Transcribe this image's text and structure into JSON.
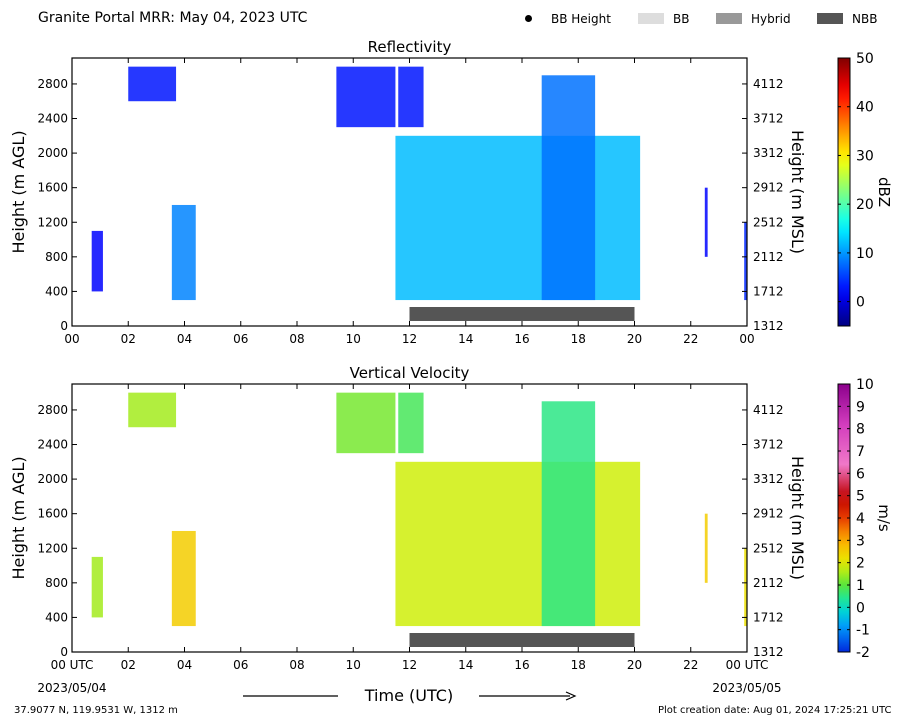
{
  "header": {
    "title": "Granite Portal MRR:  May 04, 2023 UTC"
  },
  "legend": {
    "items": [
      {
        "label": "BB Height",
        "color": "#000000",
        "marker": "dot"
      },
      {
        "label": "BB",
        "color": "#dddddd",
        "marker": "box"
      },
      {
        "label": "Hybrid",
        "color": "#999999",
        "marker": "box"
      },
      {
        "label": "NBB",
        "color": "#555555",
        "marker": "box"
      }
    ]
  },
  "xaxis": {
    "label": "Time (UTC)",
    "ticks": [
      "00",
      "02",
      "04",
      "06",
      "08",
      "10",
      "12",
      "14",
      "16",
      "18",
      "20",
      "22",
      "00"
    ],
    "tick_values": [
      0,
      2,
      4,
      6,
      8,
      10,
      12,
      14,
      16,
      18,
      20,
      22,
      24
    ],
    "bottom_ticks": [
      "00 UTC",
      "02",
      "04",
      "06",
      "08",
      "10",
      "12",
      "14",
      "16",
      "18",
      "20",
      "22",
      "00 UTC"
    ],
    "start_date": "2023/05/04",
    "end_date": "2023/05/05"
  },
  "footer": {
    "location": "37.9077 N, 119.9531 W, 1312 m",
    "created": "Plot creation date: Aug 01, 2024 17:25:21 UTC"
  },
  "chart_data": [
    {
      "type": "heatmap",
      "title": "Reflectivity",
      "ylabel": "Height (m AGL)",
      "ylabel_right": "Height (m MSL)",
      "xlim": [
        0,
        24
      ],
      "ylim": [
        0,
        3100
      ],
      "yticks": [
        0,
        400,
        800,
        1200,
        1600,
        2000,
        2400,
        2800
      ],
      "yticks_right": [
        "1312",
        "1712",
        "2112",
        "2512",
        "2912",
        "3312",
        "3712",
        "4112"
      ],
      "colorbar": {
        "label": "dBZ",
        "min": -5,
        "max": 50,
        "ticks": [
          0,
          10,
          20,
          30,
          40,
          50
        ]
      },
      "nbb_bar": {
        "start": 12,
        "end": 20,
        "color": "#555555"
      },
      "regions": [
        {
          "start": 2.0,
          "end": 3.7,
          "top": 3000,
          "bottom": 2600,
          "value": 3
        },
        {
          "start": 3.55,
          "end": 4.4,
          "top": 1400,
          "bottom": 300,
          "value": 9
        },
        {
          "start": 0.7,
          "end": 1.1,
          "top": 1100,
          "bottom": 400,
          "value": 2
        },
        {
          "start": 9.4,
          "end": 11.5,
          "top": 3000,
          "bottom": 2300,
          "value": 3
        },
        {
          "start": 11.6,
          "end": 12.5,
          "top": 3000,
          "bottom": 2300,
          "value": 3
        },
        {
          "start": 11.5,
          "end": 20.2,
          "top": 2200,
          "bottom": 300,
          "value": 12
        },
        {
          "start": 16.7,
          "end": 18.6,
          "top": 2900,
          "bottom": 300,
          "value": 8
        },
        {
          "start": 22.5,
          "end": 22.6,
          "top": 1600,
          "bottom": 800,
          "value": 2
        },
        {
          "start": 23.9,
          "end": 24.0,
          "top": 1200,
          "bottom": 300,
          "value": 4
        }
      ]
    },
    {
      "type": "heatmap",
      "title": "Vertical Velocity",
      "ylabel": "Height (m AGL)",
      "ylabel_right": "Height (m MSL)",
      "xlim": [
        0,
        24
      ],
      "ylim": [
        0,
        3100
      ],
      "yticks": [
        0,
        400,
        800,
        1200,
        1600,
        2000,
        2400,
        2800
      ],
      "yticks_right": [
        "1312",
        "1712",
        "2112",
        "2512",
        "2912",
        "3312",
        "3712",
        "4112"
      ],
      "colorbar": {
        "label": "m/s",
        "min": -2,
        "max": 10,
        "ticks": [
          -2,
          -1,
          0,
          1,
          2,
          3,
          4,
          5,
          6,
          7,
          8,
          9,
          10
        ]
      },
      "nbb_bar": {
        "start": 12,
        "end": 20,
        "color": "#555555"
      },
      "regions": [
        {
          "start": 2.0,
          "end": 3.7,
          "top": 3000,
          "bottom": 2600,
          "value": 1.5
        },
        {
          "start": 3.55,
          "end": 4.4,
          "top": 1400,
          "bottom": 300,
          "value": 2.5
        },
        {
          "start": 0.7,
          "end": 1.1,
          "top": 1100,
          "bottom": 400,
          "value": 1.5
        },
        {
          "start": 9.4,
          "end": 11.5,
          "top": 3000,
          "bottom": 2300,
          "value": 1.2
        },
        {
          "start": 11.6,
          "end": 12.5,
          "top": 3000,
          "bottom": 2300,
          "value": 0.8
        },
        {
          "start": 11.5,
          "end": 20.2,
          "top": 2200,
          "bottom": 300,
          "value": 1.8
        },
        {
          "start": 16.7,
          "end": 18.6,
          "top": 2900,
          "bottom": 300,
          "value": 0.5
        },
        {
          "start": 22.5,
          "end": 22.6,
          "top": 1600,
          "bottom": 800,
          "value": 2.5
        },
        {
          "start": 23.9,
          "end": 24.0,
          "top": 1200,
          "bottom": 300,
          "value": 2.2
        }
      ]
    }
  ]
}
